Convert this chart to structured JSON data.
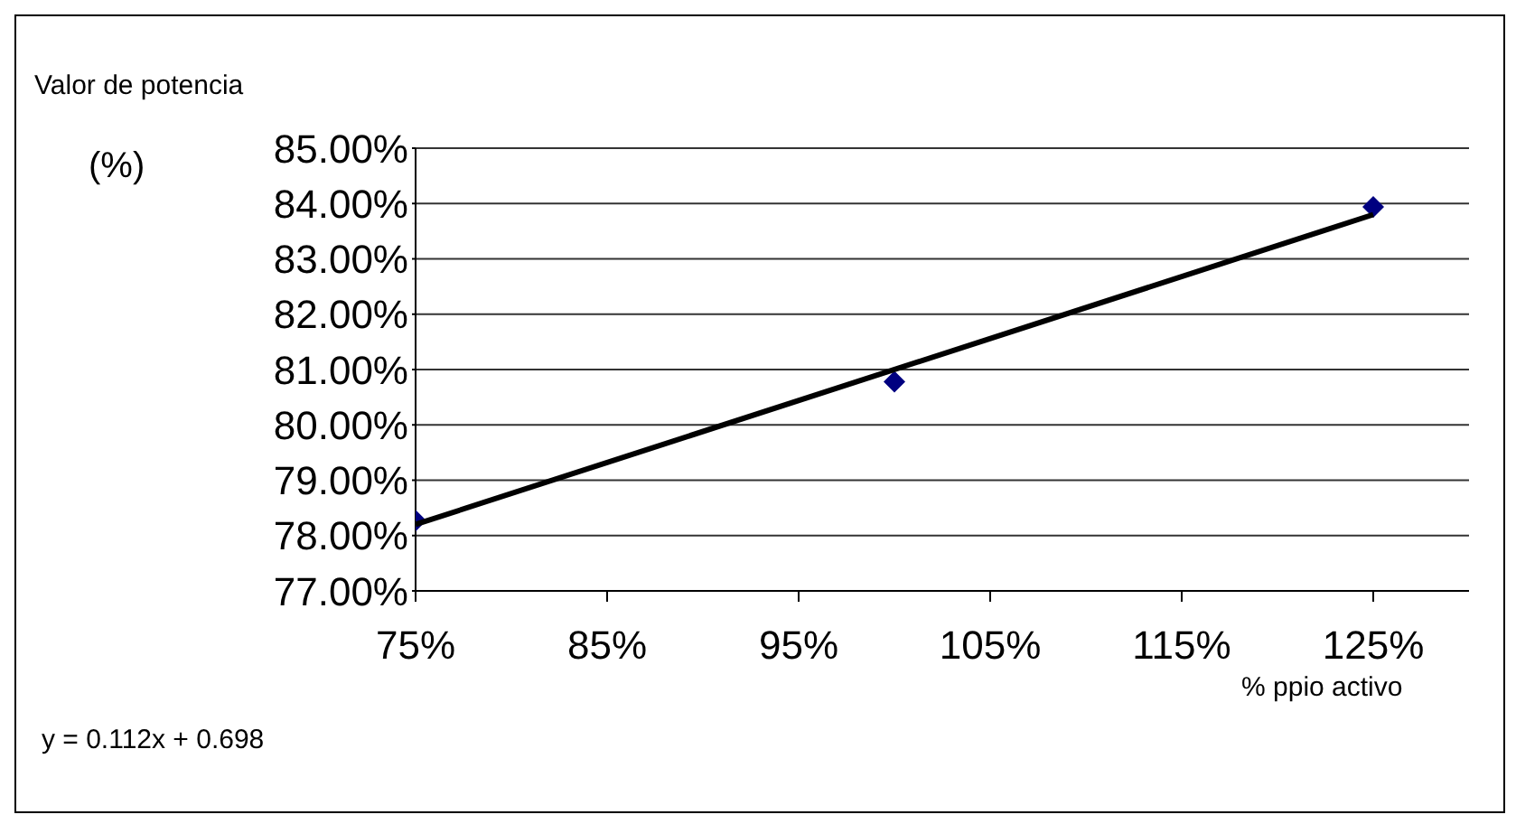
{
  "chart_data": {
    "type": "scatter",
    "ylabel": "Valor de potencia",
    "xlabel": "% ppio activo",
    "annotations": [
      "(%)",
      "y = 0.112x + 0.698"
    ],
    "xlim": [
      75,
      130
    ],
    "xticks": [
      {
        "value": 75,
        "label": "75%"
      },
      {
        "value": 85,
        "label": "85%"
      },
      {
        "value": 95,
        "label": "95%"
      },
      {
        "value": 105,
        "label": "105%"
      },
      {
        "value": 115,
        "label": "115%"
      },
      {
        "value": 125,
        "label": "125%"
      }
    ],
    "ylim": [
      77,
      85
    ],
    "yticks": [
      {
        "value": 77,
        "label": "77.00%"
      },
      {
        "value": 78,
        "label": "78.00%"
      },
      {
        "value": 79,
        "label": "79.00%"
      },
      {
        "value": 80,
        "label": "80.00%"
      },
      {
        "value": 81,
        "label": "81.00%"
      },
      {
        "value": 82,
        "label": "82.00%"
      },
      {
        "value": 83,
        "label": "83.00%"
      },
      {
        "value": 84,
        "label": "84.00%"
      },
      {
        "value": 85,
        "label": "85.00%"
      }
    ],
    "x": [
      75,
      100,
      125
    ],
    "series": [
      {
        "color": "#000080",
        "marker": "diamond",
        "values": [
          78.27,
          80.78,
          83.94
        ]
      },
      {
        "type": "line",
        "color": "#000000",
        "marker": "none",
        "x": [
          75,
          125
        ],
        "values": [
          78.2,
          83.8
        ]
      }
    ],
    "grid": "y",
    "legend": false
  }
}
